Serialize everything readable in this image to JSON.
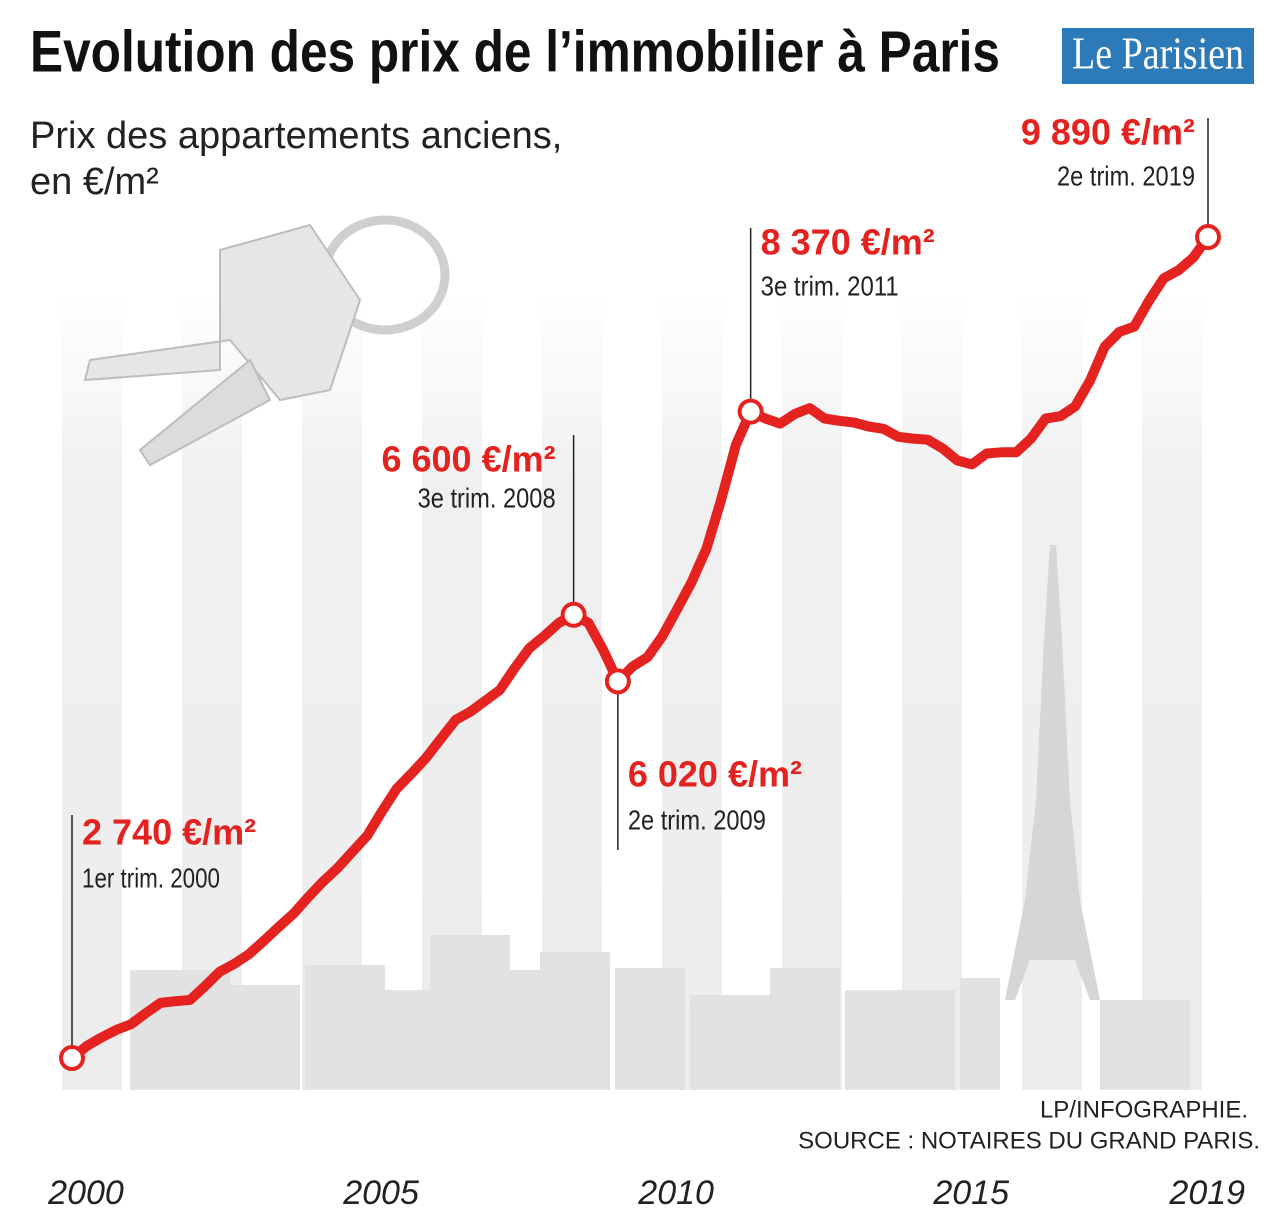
{
  "chart_data": {
    "type": "line",
    "title": "Evolution des prix de l’immobilier à Paris",
    "subtitle": [
      "Prix des appartements anciens,",
      "en €/m²"
    ],
    "logo": "Le Parisien",
    "credits": [
      "LP/INFOGRAPHIE.",
      "SOURCE : NOTAIRES DU GRAND PARIS."
    ],
    "color": "#e42320",
    "x": [
      2000,
      2000.25,
      2000.5,
      2000.75,
      2001,
      2001.25,
      2001.5,
      2001.75,
      2002,
      2002.25,
      2002.5,
      2002.75,
      2003,
      2003.25,
      2003.5,
      2003.75,
      2004,
      2004.25,
      2004.5,
      2004.75,
      2005,
      2005.25,
      2005.5,
      2005.75,
      2006,
      2006.25,
      2006.5,
      2006.75,
      2007,
      2007.25,
      2007.5,
      2007.75,
      2008,
      2008.25,
      2008.5,
      2008.75,
      2009,
      2009.25,
      2009.5,
      2009.75,
      2010,
      2010.25,
      2010.5,
      2010.75,
      2011,
      2011.25,
      2011.5,
      2011.75,
      2012,
      2012.25,
      2012.5,
      2012.75,
      2013,
      2013.25,
      2013.5,
      2013.75,
      2014,
      2014.25,
      2014.5,
      2014.75,
      2015,
      2015.25,
      2015.5,
      2015.75,
      2016,
      2016.25,
      2016.5,
      2016.75,
      2017,
      2017.25,
      2017.5,
      2017.75,
      2018,
      2018.25,
      2018.5,
      2018.75,
      2019,
      2019.25
    ],
    "values": [
      2740,
      2845,
      2920,
      2985,
      3035,
      3130,
      3220,
      3235,
      3245,
      3365,
      3490,
      3560,
      3645,
      3760,
      3880,
      3995,
      4140,
      4275,
      4395,
      4535,
      4675,
      4885,
      5085,
      5215,
      5355,
      5520,
      5685,
      5755,
      5850,
      5945,
      6135,
      6310,
      6415,
      6530,
      6600,
      6530,
      6295,
      6020,
      6150,
      6230,
      6410,
      6645,
      6885,
      7175,
      7600,
      8080,
      8370,
      8310,
      8265,
      8350,
      8400,
      8310,
      8290,
      8275,
      8240,
      8220,
      8150,
      8135,
      8125,
      8050,
      7945,
      7910,
      8005,
      8015,
      8015,
      8135,
      8310,
      8330,
      8415,
      8640,
      8935,
      9065,
      9110,
      9335,
      9530,
      9600,
      9710,
      9890
    ],
    "xlim": [
      2000,
      2019.25
    ],
    "xticks": [
      2000,
      2005,
      2010,
      2015,
      2019
    ],
    "ylim": [
      2000,
      10500
    ],
    "annotations": [
      {
        "x": 2000,
        "y": 2740,
        "label": "2 740 €/m²",
        "note": "1er trim. 2000"
      },
      {
        "x": 2008.5,
        "y": 6600,
        "label": "6 600 €/m²",
        "note": "3e trim. 2008"
      },
      {
        "x": 2009.25,
        "y": 6020,
        "label": "6 020 €/m²",
        "note": "2e trim. 2009"
      },
      {
        "x": 2011.5,
        "y": 8370,
        "label": "8 370 €/m²",
        "note": "3e trim. 2011"
      },
      {
        "x": 2019.25,
        "y": 9890,
        "label": "9 890 €/m²",
        "note": "2e trim. 2019"
      }
    ]
  }
}
